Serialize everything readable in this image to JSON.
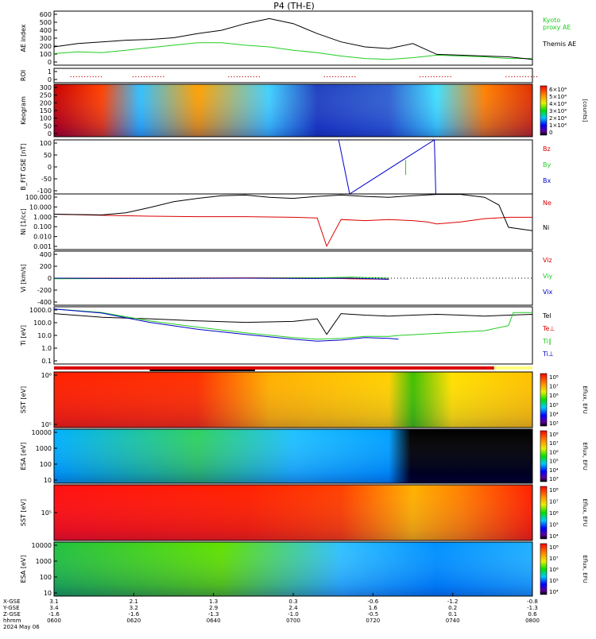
{
  "title": "P4  (TH-E)",
  "colors": {
    "kyoto": "#22cc22",
    "themis": "#000000",
    "bz": "#dd0000",
    "by": "#22cc22",
    "bx": "#0000cc",
    "ne": "#dd0000",
    "ni": "#000000",
    "te": "#000000",
    "tpar": "#22cc22",
    "tperp": "#0000cc"
  },
  "time_axis": {
    "row_labels": [
      "X-GSE",
      "Y-GSE",
      "Z-GSE",
      "hhmm",
      "2024 May 06"
    ],
    "ticks": [
      {
        "x_gse": "3.1",
        "y_gse": "3.4",
        "z_gse": "-1.6",
        "hhmm": "0600"
      },
      {
        "x_gse": "2.1",
        "y_gse": "3.2",
        "z_gse": "-1.6",
        "hhmm": "0620"
      },
      {
        "x_gse": "1.3",
        "y_gse": "2.9",
        "z_gse": "-1.3",
        "hhmm": "0640"
      },
      {
        "x_gse": "0.3",
        "y_gse": "2.4",
        "z_gse": "-1.0",
        "hhmm": "0700"
      },
      {
        "x_gse": "-0.6",
        "y_gse": "1.6",
        "z_gse": "-0.5",
        "hhmm": "0720"
      },
      {
        "x_gse": "-1.2",
        "y_gse": "0.2",
        "z_gse": "0.1",
        "hhmm": "0740"
      },
      {
        "x_gse": "-0.8",
        "y_gse": "-1.3",
        "z_gse": "0.6",
        "hhmm": "0800"
      }
    ]
  },
  "chart_data": [
    {
      "type": "line",
      "id": "ae",
      "ylabel": "AE index",
      "yticks": [
        "600",
        "500",
        "400",
        "300",
        "200",
        "100",
        "0"
      ],
      "ylim": [
        0,
        650
      ],
      "series": [
        {
          "name": "Kyoto proxy AE",
          "label_lines": [
            "Kyoto",
            "proxy AE"
          ],
          "color_key": "kyoto",
          "x": [
            0,
            5,
            10,
            15,
            20,
            25,
            30,
            35,
            40,
            45,
            50,
            55,
            60,
            65,
            70,
            75,
            80,
            85,
            90,
            95,
            100
          ],
          "y": [
            140,
            160,
            150,
            180,
            210,
            240,
            270,
            270,
            240,
            220,
            180,
            150,
            110,
            80,
            70,
            90,
            120,
            110,
            100,
            80,
            80
          ]
        },
        {
          "name": "Themis AE",
          "label_lines": [
            "Themis AE"
          ],
          "color_key": "themis",
          "x": [
            0,
            5,
            10,
            15,
            20,
            25,
            30,
            35,
            40,
            45,
            50,
            55,
            60,
            65,
            70,
            75,
            80,
            85,
            90,
            95,
            100
          ],
          "y": [
            220,
            260,
            280,
            300,
            310,
            330,
            380,
            420,
            500,
            560,
            500,
            380,
            280,
            220,
            200,
            260,
            130,
            120,
            110,
            100,
            70
          ]
        }
      ]
    },
    {
      "type": "scatter",
      "id": "roi",
      "ylabel": "ROI",
      "yticks": [
        "1",
        "0"
      ],
      "ylim": [
        0,
        1.2
      ],
      "series": [
        {
          "name": "",
          "x": [
            7,
            20,
            40,
            60,
            80,
            98
          ],
          "y": [
            0.5,
            0.5,
            0.5,
            0.5,
            0.5,
            0.5
          ]
        }
      ]
    },
    {
      "type": "heatmap",
      "id": "keogram",
      "ylabel": "Keogram",
      "yticks": [
        "300",
        "250",
        "200",
        "150",
        "100",
        "50",
        "0"
      ],
      "ylim": [
        0,
        300
      ],
      "colorbar": {
        "title": "[counts]",
        "ticks": [
          "6×10⁴",
          "5×10⁴",
          "4×10⁴",
          "3×10⁴",
          "2×10⁴",
          "1×10⁴",
          "0"
        ]
      }
    },
    {
      "type": "line",
      "id": "bfield",
      "ylabel": "B_FIT GSE [nT]",
      "yticks": [
        "100",
        "50",
        "0",
        "-50",
        "-100"
      ],
      "ylim": [
        -100,
        100
      ],
      "series": [
        {
          "name": "Bz",
          "color_key": "bz",
          "x": [],
          "y": []
        },
        {
          "name": "By",
          "color_key": "by",
          "x": [
            73.5,
            73.5
          ],
          "y": [
            -30,
            25
          ]
        },
        {
          "name": "Bx",
          "color_key": "bx",
          "x": [
            59.5,
            61.8,
            79.5,
            79.8
          ],
          "y": [
            100,
            -100,
            100,
            -100
          ]
        }
      ]
    },
    {
      "type": "line",
      "id": "density",
      "ylabel": "Ni [1/cc]",
      "yticks": [
        "100.000",
        "10.000",
        "1.000",
        "0.100",
        "0.010",
        "0.001"
      ],
      "ylim": [
        0.001,
        100
      ],
      "series": [
        {
          "name": "Ne",
          "color_key": "ne",
          "x": [
            0,
            10,
            20,
            30,
            40,
            50,
            55,
            57,
            60,
            65,
            70,
            75,
            78,
            80,
            85,
            90,
            95,
            100
          ],
          "y": [
            1.5,
            1.2,
            1.0,
            0.9,
            0.9,
            0.8,
            0.7,
            0.002,
            0.5,
            0.4,
            0.5,
            0.4,
            0.3,
            0.2,
            0.3,
            0.6,
            0.8,
            0.8
          ]
        },
        {
          "name": "Ni",
          "color_key": "ni",
          "x": [
            0,
            10,
            15,
            20,
            25,
            30,
            35,
            40,
            45,
            50,
            55,
            60,
            65,
            70,
            75,
            80,
            85,
            90,
            93,
            95,
            100
          ],
          "y": [
            1.5,
            1.3,
            2,
            6,
            20,
            40,
            70,
            80,
            50,
            40,
            60,
            80,
            60,
            50,
            70,
            90,
            90,
            50,
            10,
            0.1,
            0.05
          ]
        }
      ]
    },
    {
      "type": "line",
      "id": "velocity",
      "ylabel": "Vi [km/s]",
      "yticks": [
        "400",
        "200",
        "0",
        "-200",
        "-400"
      ],
      "ylim": [
        -480,
        480
      ],
      "series": [
        {
          "name": "Viz",
          "color_key": "bz",
          "x": [
            0,
            20,
            40,
            55,
            62,
            70
          ],
          "y": [
            0,
            0,
            5,
            5,
            -10,
            -20
          ]
        },
        {
          "name": "Viy",
          "color_key": "by",
          "x": [
            0,
            20,
            40,
            55,
            62,
            70
          ],
          "y": [
            -10,
            -5,
            0,
            5,
            20,
            0
          ]
        },
        {
          "name": "Vix",
          "color_key": "bx",
          "x": [
            0,
            20,
            40,
            55,
            62,
            70
          ],
          "y": [
            0,
            -5,
            0,
            -5,
            0,
            -20
          ]
        }
      ]
    },
    {
      "type": "line",
      "id": "temperature",
      "ylabel": "Ti [eV]",
      "yticks": [
        "1000.0",
        "100.0",
        "10.0",
        "1.0",
        "0.1"
      ],
      "ylim": [
        0.05,
        3000
      ],
      "series": [
        {
          "name": "Tel",
          "color_key": "te",
          "x": [
            0,
            10,
            20,
            30,
            40,
            50,
            55,
            57,
            60,
            65,
            70,
            75,
            80,
            85,
            90,
            95,
            100
          ],
          "y": [
            800,
            400,
            300,
            200,
            150,
            180,
            300,
            15,
            800,
            600,
            500,
            600,
            700,
            600,
            500,
            600,
            700
          ]
        },
        {
          "name": "Te⊥",
          "color_key": "bz",
          "x": [],
          "y": []
        },
        {
          "name": "Ti∥",
          "color_key": "tpar",
          "x": [
            0,
            10,
            20,
            30,
            40,
            50,
            55,
            60,
            65,
            70,
            72,
            90,
            95,
            96,
            100
          ],
          "y": [
            2000,
            1000,
            200,
            60,
            20,
            8,
            6,
            7,
            10,
            10,
            12,
            30,
            80,
            1000,
            1000
          ]
        },
        {
          "name": "Ti⊥",
          "color_key": "tperp",
          "x": [
            0,
            10,
            20,
            30,
            40,
            50,
            55,
            60,
            65,
            70,
            72
          ],
          "y": [
            2000,
            900,
            150,
            40,
            15,
            6,
            4,
            5,
            8,
            7,
            6
          ]
        }
      ]
    },
    {
      "type": "heatmap",
      "id": "sst_e",
      "ylabel": "SST [eV]",
      "yticks": [
        "10⁶",
        "10⁵"
      ],
      "colorbar": {
        "title": "Eflux, EFU",
        "ticks": [
          "10⁸",
          "10⁷",
          "10⁶",
          "10⁵",
          "10⁴",
          "10³"
        ]
      }
    },
    {
      "type": "heatmap",
      "id": "esa_e",
      "ylabel": "ESA [eV]",
      "yticks": [
        "10000",
        "1000",
        "100",
        "10"
      ],
      "colorbar": {
        "title": "Eflux, EFU",
        "ticks": [
          "10⁸",
          "10⁷",
          "10⁶",
          "10⁵",
          "10⁴",
          "10³"
        ]
      }
    },
    {
      "type": "heatmap",
      "id": "sst_i",
      "ylabel": "SST [eV]",
      "yticks": [
        "10⁵"
      ],
      "colorbar": {
        "title": "Eflux, EFU",
        "ticks": [
          "10⁸",
          "10⁷",
          "10⁶",
          "10⁵",
          "10⁴"
        ]
      }
    },
    {
      "type": "heatmap",
      "id": "esa_i",
      "ylabel": "ESA [eV]",
      "yticks": [
        "10000",
        "1000",
        "100",
        "10"
      ],
      "colorbar": {
        "title": "Eflux, EFU",
        "ticks": [
          "10⁸",
          "10⁷",
          "10⁶",
          "10⁵",
          "10⁴"
        ]
      }
    }
  ]
}
